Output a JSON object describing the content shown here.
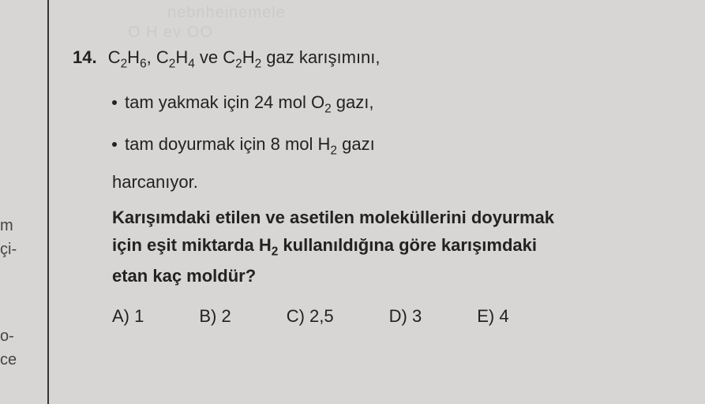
{
  "leftMargin": {
    "m": "m",
    "ci": "çi-",
    "o": "o-",
    "ce": "ce"
  },
  "question": {
    "number": "14.",
    "stem_part1": "C",
    "stem_formula1_sub": "2",
    "stem_part2": "H",
    "stem_formula2_sub": "6",
    "stem_part3": ", C",
    "stem_formula3_sub": "2",
    "stem_part4": "H",
    "stem_formula4_sub": "4",
    "stem_part5": " ve C",
    "stem_formula5_sub": "2",
    "stem_part6": "H",
    "stem_formula6_sub": "2",
    "stem_part7": " gaz karışımını,",
    "bullet1_text1": "tam yakmak için 24 mol O",
    "bullet1_sub": "2",
    "bullet1_text2": " gazı,",
    "bullet2_text1": "tam doyurmak için 8 mol H",
    "bullet2_sub": "2",
    "bullet2_text2": " gazı",
    "consumed": "harcanıyor.",
    "bold_line1": "Karışımdaki etilen ve asetilen moleküllerini doyurmak",
    "bold_line2_p1": "için eşit miktarda H",
    "bold_line2_sub": "2",
    "bold_line2_p2": " kullanıldığına göre karışımdaki",
    "bold_line3": "etan kaç moldür?"
  },
  "options": {
    "a": "A) 1",
    "b": "B) 2",
    "c": "C) 2,5",
    "d": "D) 3",
    "e": "E) 4"
  },
  "ghost": {
    "g1": "nebnheinemele",
    "g2": "O H ev OO"
  },
  "colors": {
    "background": "#d8d6d4",
    "text": "#222222",
    "border": "#333333"
  }
}
